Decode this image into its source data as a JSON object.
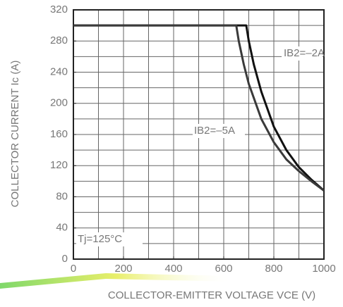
{
  "chart_data": {
    "type": "line",
    "x_label": "COLLECTOR-EMITTER VOLTAGE   VCE (V)",
    "y_label": "COLLECTOR CURRENT   Ic (A)",
    "annotations": [
      "IB2=–2A",
      "IB2=–5A",
      "Tj=125°C"
    ],
    "xlim": [
      0,
      1000
    ],
    "ylim": [
      0,
      320
    ],
    "xticks": [
      0,
      200,
      400,
      600,
      800,
      1000
    ],
    "yticks": [
      0,
      40,
      80,
      120,
      160,
      200,
      240,
      280,
      320
    ],
    "x_grid": [
      100,
      200,
      300,
      400,
      500,
      600,
      700,
      800,
      900
    ],
    "y_grid": [
      20,
      40,
      60,
      80,
      100,
      120,
      140,
      160,
      180,
      200,
      220,
      240,
      260,
      280,
      300
    ],
    "series": [
      {
        "name": "IB2=–2A",
        "color": "#111111",
        "x": [
          0,
          690,
          700,
          720,
          750,
          800,
          850,
          900,
          950,
          1000
        ],
        "values": [
          300,
          300,
          280,
          250,
          215,
          170,
          140,
          118,
          102,
          88
        ]
      },
      {
        "name": "IB2=–5A",
        "color": "#3a3a3a",
        "x": [
          0,
          650,
          660,
          680,
          700,
          750,
          800,
          850,
          900,
          950,
          1000
        ],
        "values": [
          300,
          300,
          280,
          250,
          225,
          180,
          150,
          128,
          113,
          100,
          88
        ]
      }
    ]
  }
}
